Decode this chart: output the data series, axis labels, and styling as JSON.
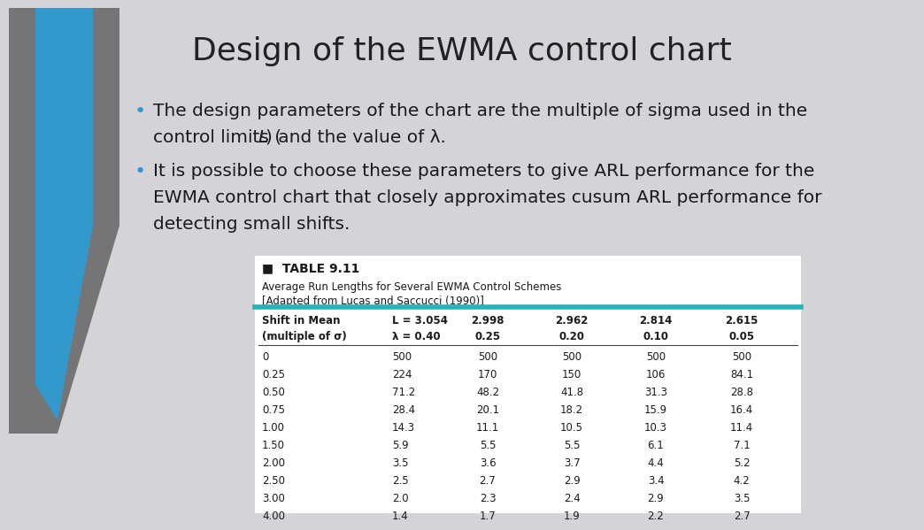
{
  "title": "Design of the EWMA control chart",
  "bullet_color": "#3399cc",
  "bullet1_line1": "The design parameters of the chart are the multiple of sigma used in the",
  "bullet1_line2_pre": "control limits (",
  "bullet1_L": "L",
  "bullet1_line2_post": ") and the value of λ.",
  "bullet2_line1": "It is possible to choose these parameters to give ARL performance for the",
  "bullet2_line2": "EWMA control chart that closely approximates cusum ARL performance for",
  "bullet2_line3": "detecting small shifts.",
  "table_title": "■  TABLE 9.11",
  "table_subtitle1": "Average Run Lengths for Several EWMA Control Schemes",
  "table_subtitle2": "[Adapted from Lucas and Saccucci (1990)]",
  "col_header_row1": [
    "Shift in Mean",
    "L = 3.054",
    "2.998",
    "2.962",
    "2.814",
    "2.615"
  ],
  "col_header_row2": [
    "(multiple of σ)",
    "λ = 0.40",
    "0.25",
    "0.20",
    "0.10",
    "0.05"
  ],
  "table_data": [
    [
      "0",
      "500",
      "500",
      "500",
      "500",
      "500"
    ],
    [
      "0.25",
      "224",
      "170",
      "150",
      "106",
      "84.1"
    ],
    [
      "0.50",
      "71.2",
      "48.2",
      "41.8",
      "31.3",
      "28.8"
    ],
    [
      "0.75",
      "28.4",
      "20.1",
      "18.2",
      "15.9",
      "16.4"
    ],
    [
      "1.00",
      "14.3",
      "11.1",
      "10.5",
      "10.3",
      "11.4"
    ],
    [
      "1.50",
      "5.9",
      "5.5",
      "5.5",
      "6.1",
      "7.1"
    ],
    [
      "2.00",
      "3.5",
      "3.6",
      "3.7",
      "4.4",
      "5.2"
    ],
    [
      "2.50",
      "2.5",
      "2.7",
      "2.9",
      "3.4",
      "4.2"
    ],
    [
      "3.00",
      "2.0",
      "2.3",
      "2.4",
      "2.9",
      "3.5"
    ],
    [
      "4.00",
      "1.4",
      "1.7",
      "1.9",
      "2.2",
      "2.7"
    ]
  ],
  "bg_color": "#d4d4d8",
  "teal_color": "#2ab0b8",
  "title_color": "#222222",
  "text_color": "#1a1a1a",
  "gray_shape_color": "#757575",
  "blue_shape_color": "#3399cc"
}
